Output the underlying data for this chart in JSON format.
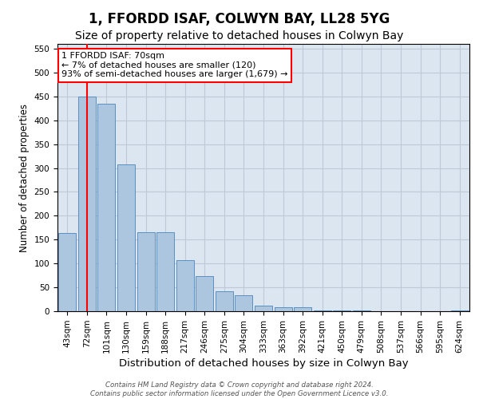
{
  "title": "1, FFORDD ISAF, COLWYN BAY, LL28 5YG",
  "subtitle": "Size of property relative to detached houses in Colwyn Bay",
  "xlabel": "Distribution of detached houses by size in Colwyn Bay",
  "ylabel": "Number of detached properties",
  "categories": [
    "43sqm",
    "72sqm",
    "101sqm",
    "130sqm",
    "159sqm",
    "188sqm",
    "217sqm",
    "246sqm",
    "275sqm",
    "304sqm",
    "333sqm",
    "363sqm",
    "392sqm",
    "421sqm",
    "450sqm",
    "479sqm",
    "508sqm",
    "537sqm",
    "566sqm",
    "595sqm",
    "624sqm"
  ],
  "values": [
    163,
    450,
    435,
    307,
    165,
    165,
    107,
    73,
    42,
    33,
    11,
    8,
    8,
    2,
    2,
    1,
    0,
    0,
    0,
    0,
    2
  ],
  "bar_color": "#adc6e0",
  "bar_edge_color": "#5a8fc0",
  "grid_color": "#c0c8d8",
  "background_color": "#dce6f0",
  "annotation_line1": "1 FFORDD ISAF: 70sqm",
  "annotation_line2": "← 7% of detached houses are smaller (120)",
  "annotation_line3": "93% of semi-detached houses are larger (1,679) →",
  "vline_x": 1,
  "ylim": [
    0,
    560
  ],
  "yticks": [
    0,
    50,
    100,
    150,
    200,
    250,
    300,
    350,
    400,
    450,
    500,
    550
  ],
  "footer": "Contains HM Land Registry data © Crown copyright and database right 2024.\nContains public sector information licensed under the Open Government Licence v3.0.",
  "title_fontsize": 12,
  "subtitle_fontsize": 10,
  "xlabel_fontsize": 9.5,
  "ylabel_fontsize": 8.5,
  "tick_fontsize": 7.5,
  "annotation_fontsize": 8
}
